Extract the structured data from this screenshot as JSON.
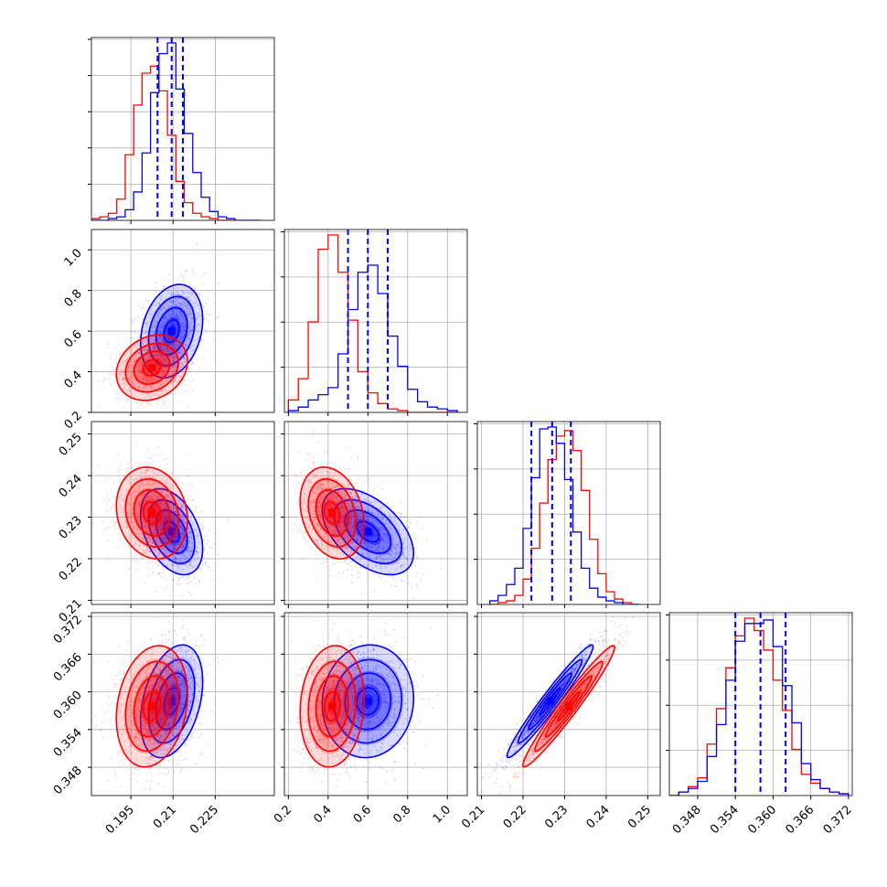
{
  "chart_data": {
    "type": "corner",
    "grid": true,
    "series": [
      {
        "color": "#0000ff"
      },
      {
        "color": "#ff0000"
      }
    ],
    "quantile_color": "#0000ff",
    "panels": [
      {
        "kind": "hist",
        "row": 0,
        "col": 0,
        "param": 0,
        "xlim": [
          0.181,
          0.246
        ],
        "ticks": [
          0.195,
          0.21,
          0.225
        ],
        "ytick_count": 5,
        "quantiles": [
          0.2045,
          0.2095,
          0.2135
        ],
        "bins": [
          0.181,
          0.184,
          0.187,
          0.19,
          0.193,
          0.196,
          0.199,
          0.202,
          0.205,
          0.208,
          0.211,
          0.214,
          0.217,
          0.22,
          0.223,
          0.226,
          0.229,
          0.232,
          0.235,
          0.238,
          0.241
        ],
        "counts": {
          "blue": [
            0,
            0,
            0.01,
            0.02,
            0.06,
            0.16,
            0.38,
            0.72,
            0.94,
            1.0,
            0.74,
            0.49,
            0.27,
            0.13,
            0.05,
            0.02,
            0.01,
            0,
            0,
            0
          ],
          "red": [
            0.01,
            0.02,
            0.04,
            0.12,
            0.37,
            0.65,
            0.83,
            0.87,
            0.73,
            0.48,
            0.22,
            0.1,
            0.04,
            0.02,
            0.01,
            0,
            0,
            0,
            0,
            0
          ]
        }
      },
      {
        "kind": "hist",
        "row": 1,
        "col": 1,
        "param": 1,
        "xlim": [
          0.18,
          1.1
        ],
        "ticks": [
          0.2,
          0.4,
          0.6,
          0.8,
          1.0
        ],
        "ytick_labels": [
          "0.2",
          "0.4",
          "0.6",
          "0.8",
          "1.0"
        ],
        "ytick_count": 4,
        "quantiles": [
          0.5,
          0.6,
          0.7
        ],
        "bins": [
          0.2,
          0.25,
          0.3,
          0.35,
          0.4,
          0.45,
          0.5,
          0.55,
          0.6,
          0.65,
          0.7,
          0.75,
          0.8,
          0.85,
          0.9,
          0.95,
          1.0,
          1.05
        ],
        "counts": {
          "blue": [
            0.01,
            0.03,
            0.07,
            0.1,
            0.14,
            0.33,
            0.58,
            0.79,
            0.83,
            0.67,
            0.43,
            0.26,
            0.13,
            0.06,
            0.03,
            0.02,
            0.01
          ],
          "red": [
            0.07,
            0.19,
            0.51,
            0.92,
            1.0,
            0.79,
            0.52,
            0.23,
            0.11,
            0.05,
            0.02,
            0.01,
            0,
            0,
            0,
            0,
            0
          ]
        }
      },
      {
        "kind": "hist",
        "row": 2,
        "col": 2,
        "param": 2,
        "xlim": [
          0.209,
          0.253
        ],
        "ticks": [
          0.21,
          0.22,
          0.23,
          0.24,
          0.25
        ],
        "ytick_labels": [
          "0.21",
          "0.22",
          "0.23",
          "0.24",
          "0.25"
        ],
        "ytick_count": 4,
        "quantiles": [
          0.222,
          0.227,
          0.2315
        ],
        "bins": [
          0.212,
          0.214,
          0.216,
          0.218,
          0.22,
          0.222,
          0.224,
          0.226,
          0.228,
          0.23,
          0.232,
          0.234,
          0.236,
          0.238,
          0.24,
          0.242,
          0.244,
          0.246,
          0.248
        ],
        "counts": {
          "blue": [
            0.02,
            0.05,
            0.11,
            0.2,
            0.42,
            0.7,
            0.97,
            0.98,
            0.89,
            0.69,
            0.4,
            0.2,
            0.09,
            0.04,
            0.02,
            0.01,
            0,
            0
          ],
          "red": [
            0,
            0.01,
            0.02,
            0.05,
            0.14,
            0.31,
            0.56,
            0.8,
            0.93,
            0.96,
            0.85,
            0.63,
            0.36,
            0.17,
            0.07,
            0.03,
            0.01,
            0
          ]
        }
      },
      {
        "kind": "hist",
        "row": 3,
        "col": 3,
        "param": 3,
        "xlim": [
          0.3435,
          0.3726
        ],
        "ticks": [
          0.348,
          0.354,
          0.36,
          0.366,
          0.372
        ],
        "ytick_labels": [
          "0.348",
          "0.354",
          "0.360",
          "0.366",
          "0.372"
        ],
        "ytick_count": 4,
        "quantiles": [
          0.354,
          0.358,
          0.362
        ],
        "bins": [
          0.3435,
          0.345,
          0.3465,
          0.348,
          0.3495,
          0.351,
          0.3525,
          0.354,
          0.3555,
          0.357,
          0.3585,
          0.36,
          0.3615,
          0.363,
          0.3645,
          0.366,
          0.3675,
          0.369,
          0.3705,
          0.372
        ],
        "counts": {
          "blue": [
            0,
            0.02,
            0.04,
            0.08,
            0.22,
            0.4,
            0.65,
            0.87,
            0.97,
            0.97,
            0.99,
            0.84,
            0.62,
            0.41,
            0.18,
            0.09,
            0.04,
            0.02,
            0.01
          ],
          "red": [
            0,
            0.02,
            0.05,
            0.1,
            0.29,
            0.49,
            0.72,
            0.9,
            1.0,
            0.93,
            0.82,
            0.65,
            0.48,
            0.26,
            0.12,
            0.07,
            0.04,
            0.02,
            0.01
          ]
        }
      },
      {
        "kind": "scatter2d",
        "row": 1,
        "col": 0,
        "xparam": 0,
        "yparam": 1,
        "xlim": [
          0.181,
          0.246
        ],
        "ylim": [
          0.2,
          1.1
        ],
        "blue": {
          "mean": [
            0.2095,
            0.6
          ],
          "sd": [
            0.0048,
            0.1
          ],
          "rho": 0.25
        },
        "red": {
          "mean": [
            0.2025,
            0.42
          ],
          "sd": [
            0.0055,
            0.07
          ],
          "rho": 0.2
        }
      },
      {
        "kind": "scatter2d",
        "row": 2,
        "col": 0,
        "xparam": 0,
        "yparam": 2,
        "xlim": [
          0.181,
          0.246
        ],
        "ylim": [
          0.209,
          0.253
        ],
        "blue": {
          "mean": [
            0.2095,
            0.2265
          ],
          "sd": [
            0.0048,
            0.0045
          ],
          "rho": -0.4
        },
        "red": {
          "mean": [
            0.2025,
            0.231
          ],
          "sd": [
            0.0055,
            0.0048
          ],
          "rho": -0.15
        }
      },
      {
        "kind": "scatter2d",
        "row": 3,
        "col": 0,
        "xparam": 0,
        "yparam": 3,
        "xlim": [
          0.181,
          0.246
        ],
        "ylim": [
          0.3435,
          0.3726
        ],
        "blue": {
          "mean": [
            0.2095,
            0.3585
          ],
          "sd": [
            0.0048,
            0.0039
          ],
          "rho": 0.35
        },
        "red": {
          "mean": [
            0.2025,
            0.3577
          ],
          "sd": [
            0.0055,
            0.0042
          ],
          "rho": 0.2
        }
      },
      {
        "kind": "scatter2d",
        "row": 2,
        "col": 1,
        "xparam": 1,
        "yparam": 2,
        "xlim": [
          0.18,
          1.1
        ],
        "ylim": [
          0.209,
          0.253
        ],
        "blue": {
          "mean": [
            0.6,
            0.2265
          ],
          "sd": [
            0.1,
            0.0045
          ],
          "rho": -0.5
        },
        "red": {
          "mean": [
            0.42,
            0.231
          ],
          "sd": [
            0.07,
            0.0048
          ],
          "rho": -0.25
        }
      },
      {
        "kind": "scatter2d",
        "row": 3,
        "col": 1,
        "xparam": 1,
        "yparam": 3,
        "xlim": [
          0.18,
          1.1
        ],
        "ylim": [
          0.3435,
          0.3726
        ],
        "blue": {
          "mean": [
            0.6,
            0.3585
          ],
          "sd": [
            0.1,
            0.0039
          ],
          "rho": 0.05
        },
        "red": {
          "mean": [
            0.42,
            0.3577
          ],
          "sd": [
            0.07,
            0.0042
          ],
          "rho": 0.1
        }
      },
      {
        "kind": "scatter2d",
        "row": 3,
        "col": 2,
        "xparam": 2,
        "yparam": 3,
        "xlim": [
          0.209,
          0.253
        ],
        "ylim": [
          0.3435,
          0.3726
        ],
        "blue": {
          "mean": [
            0.2265,
            0.3585
          ],
          "sd": [
            0.0045,
            0.0039
          ],
          "rho": 0.97
        },
        "red": {
          "mean": [
            0.231,
            0.3577
          ],
          "sd": [
            0.0048,
            0.0042
          ],
          "rho": 0.97
        }
      }
    ]
  }
}
